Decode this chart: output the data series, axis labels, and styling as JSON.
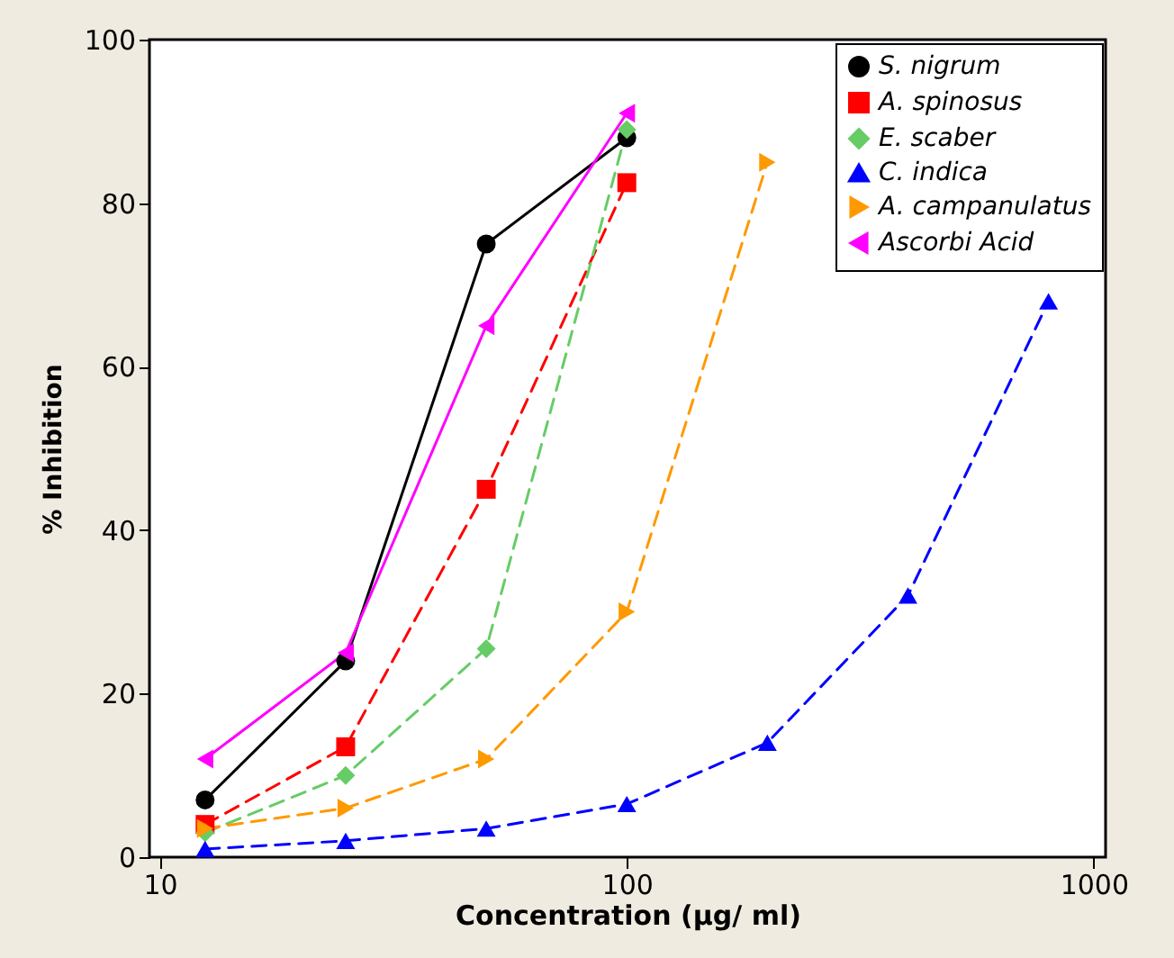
{
  "chart_data": {
    "type": "line",
    "xlabel": "Concentration (µg/ ml)",
    "ylabel": "% Inhibition",
    "log": "x",
    "xlim": [
      9.5,
      1060
    ],
    "xticks": [
      10,
      100,
      1000
    ],
    "ylim": [
      0,
      100
    ],
    "yticks": [
      0,
      20,
      40,
      60,
      80,
      100
    ],
    "grid": false,
    "legend": "top right",
    "series": [
      {
        "name": "S. nigrum",
        "color": "#000000",
        "marker": "circle",
        "line_style": "solid",
        "x": [
          12.5,
          25,
          50,
          100
        ],
        "values": [
          7,
          24,
          75,
          88
        ]
      },
      {
        "name": "A. spinosus",
        "color": "#ff0000",
        "marker": "square",
        "line_style": "dashed",
        "x": [
          12.5,
          25,
          50,
          100
        ],
        "values": [
          4,
          13.5,
          45,
          82.5
        ]
      },
      {
        "name": "E. scaber",
        "color": "#66cc66",
        "marker": "diamond",
        "line_style": "dashed",
        "x": [
          12.5,
          25,
          50,
          100
        ],
        "values": [
          3,
          10,
          25.5,
          89
        ]
      },
      {
        "name": "C. indica",
        "color": "#0000ff",
        "marker": "triangle",
        "line_style": "dashed",
        "x": [
          12.5,
          25,
          50,
          100,
          200,
          400,
          800
        ],
        "values": [
          1,
          2,
          3.5,
          6.5,
          14,
          32,
          68
        ]
      },
      {
        "name": "A. campanulatus",
        "color": "#ff9900",
        "marker": "triangle-right",
        "line_style": "dashed",
        "x": [
          12.5,
          25,
          50,
          100,
          200
        ],
        "values": [
          3.5,
          6,
          12,
          30,
          85
        ]
      },
      {
        "name": "Ascorbi Acid",
        "color": "#ff00ff",
        "marker": "triangle-left",
        "line_style": "solid",
        "x": [
          12.5,
          25,
          50,
          100
        ],
        "values": [
          12,
          25,
          65,
          91
        ]
      }
    ]
  }
}
